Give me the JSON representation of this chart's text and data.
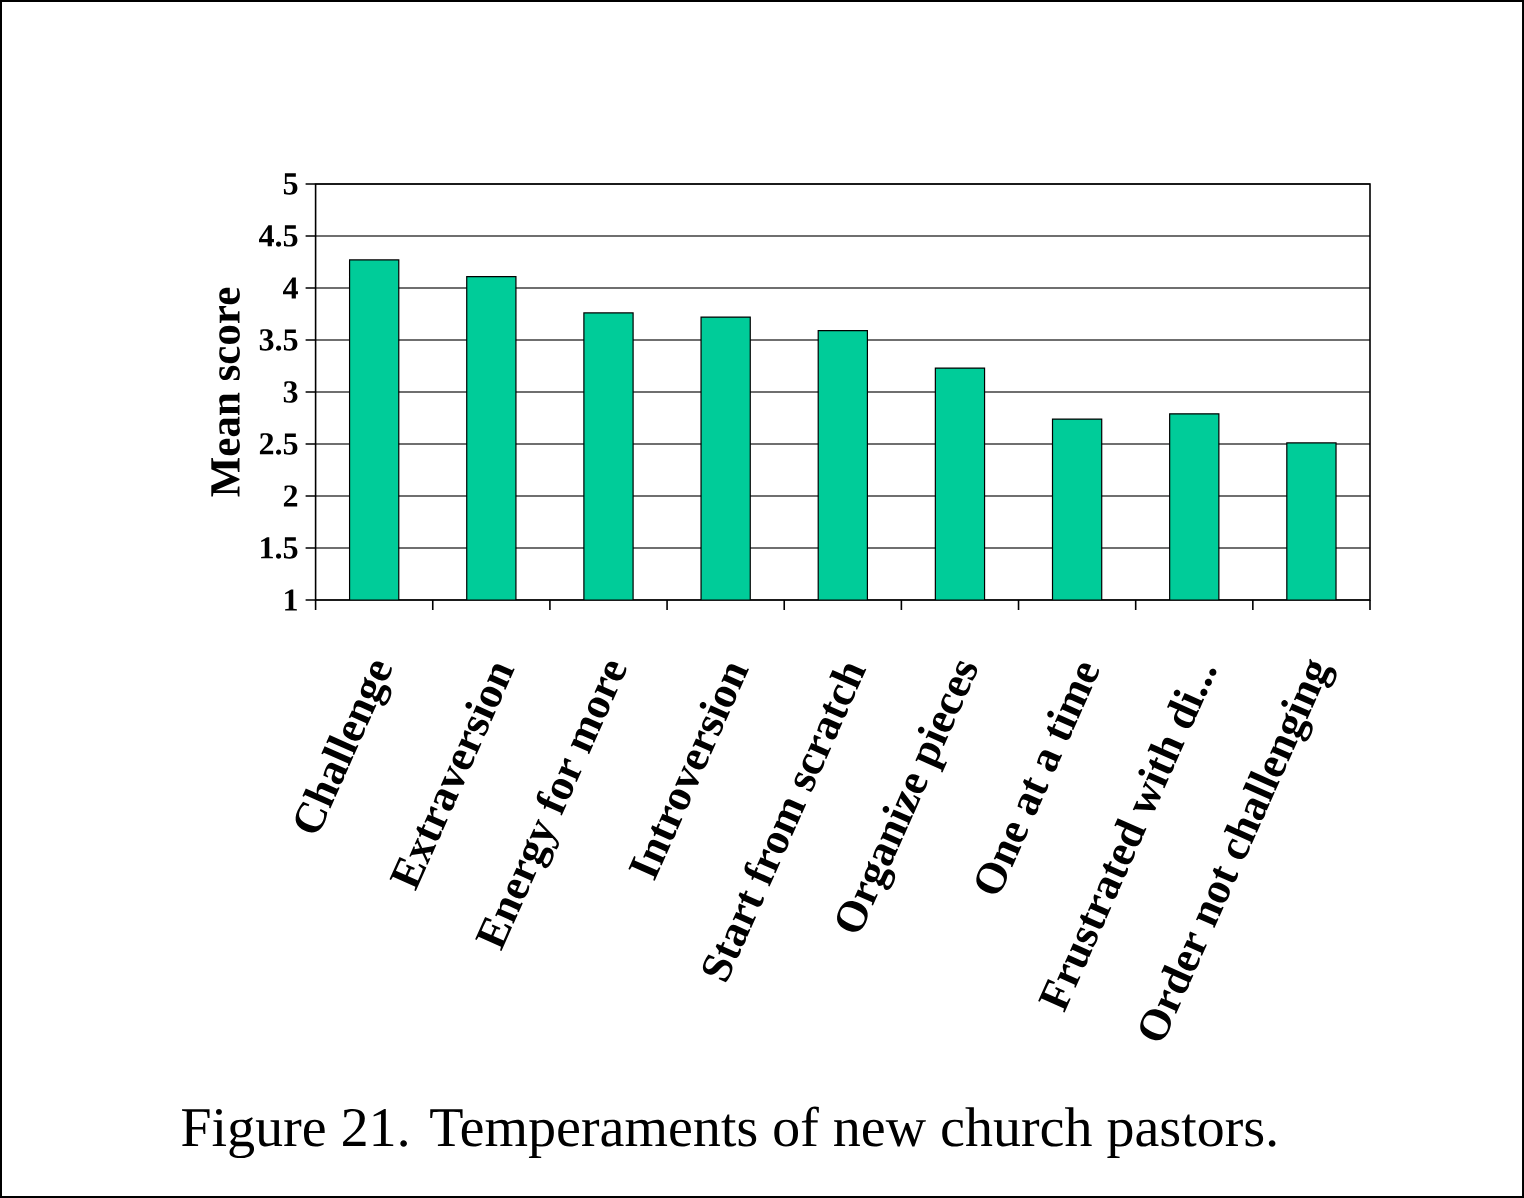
{
  "chart_data": {
    "type": "bar",
    "categories": [
      "Challenge",
      "Extraversion",
      "Energy for more",
      "Introversion",
      "Start from scratch",
      "Organize pieces",
      "One at a time",
      "Frustrated with di...",
      "Order not challenging"
    ],
    "values": [
      4.27,
      4.11,
      3.76,
      3.72,
      3.59,
      3.23,
      2.74,
      2.79,
      2.51
    ],
    "color": "#00cc99",
    "ylabel": "Mean score",
    "ylim": [
      1,
      5
    ],
    "yticks": [
      1,
      1.5,
      2,
      2.5,
      3,
      3.5,
      4,
      4.5,
      5
    ],
    "grid": "y",
    "annotations": [
      "Figure 21. Temperaments of new church pastors."
    ]
  }
}
